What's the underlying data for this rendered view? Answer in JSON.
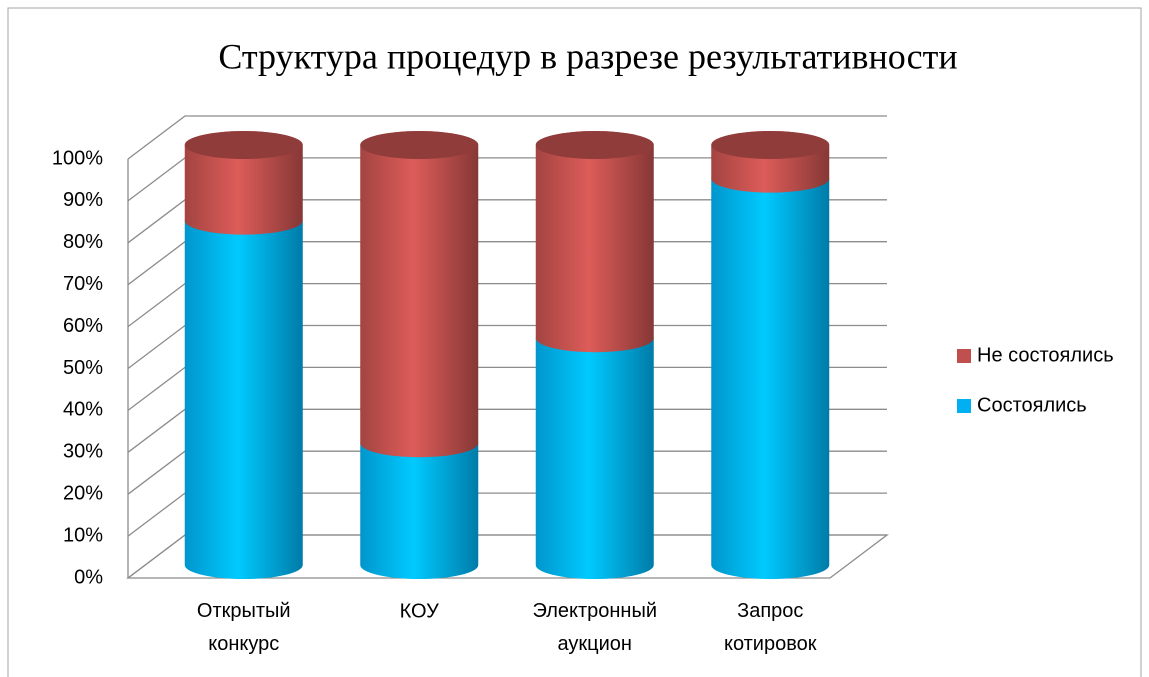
{
  "chart_data": {
    "type": "cylinder_stacked_percent",
    "title": "Структура процедур в разрезе результативности",
    "categories": [
      "Открытый конкурс",
      "КОУ",
      "Электронный аукцион",
      "Запрос котировок"
    ],
    "series": [
      {
        "name": "Состоялись",
        "color": "#00b0f0",
        "values": [
          82,
          29,
          54,
          92
        ]
      },
      {
        "name": "Не состоялись",
        "color": "#c0504d",
        "values": [
          18,
          71,
          46,
          8
        ]
      }
    ],
    "ylim": [
      0,
      100
    ],
    "yticks": [
      {
        "value": 0,
        "label": "0%"
      },
      {
        "value": 10,
        "label": "10%"
      },
      {
        "value": 20,
        "label": "20%"
      },
      {
        "value": 30,
        "label": "30%"
      },
      {
        "value": 40,
        "label": "40%"
      },
      {
        "value": 50,
        "label": "50%"
      },
      {
        "value": 60,
        "label": "60%"
      },
      {
        "value": 70,
        "label": "70%"
      },
      {
        "value": 80,
        "label": "80%"
      },
      {
        "value": 90,
        "label": "90%"
      },
      {
        "value": 100,
        "label": "100%"
      }
    ],
    "grid": true,
    "legend": "right"
  }
}
